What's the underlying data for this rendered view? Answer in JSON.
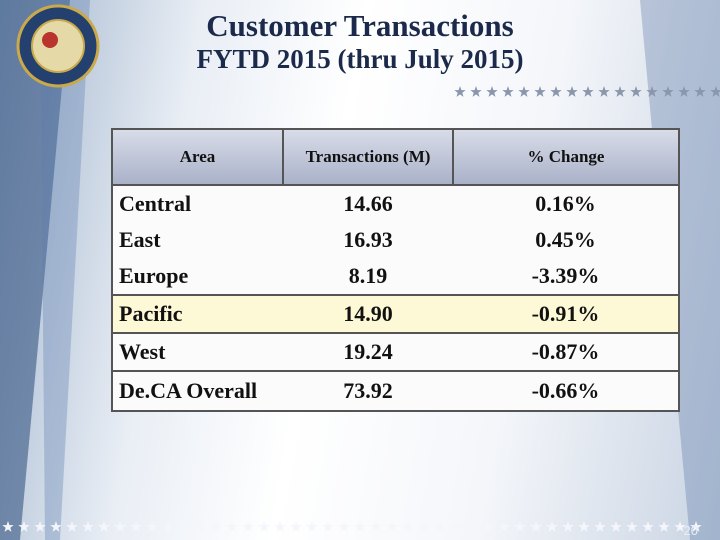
{
  "header": {
    "title": "Customer Transactions",
    "subtitle": "FYTD 2015 (thru July 2015)"
  },
  "table": {
    "columns": [
      "Area",
      "Transactions (M)",
      "% Change"
    ],
    "rows": [
      [
        "Central",
        "14.66",
        "0.16%"
      ],
      [
        "East",
        "16.93",
        "0.45%"
      ],
      [
        "Europe",
        "8.19",
        "-3.39%"
      ],
      [
        "Pacific",
        "14.90",
        "-0.91%"
      ],
      [
        "West",
        "19.24",
        "-0.87%"
      ],
      [
        "De.CA Overall",
        "73.92",
        "-0.66%"
      ]
    ]
  },
  "footer": {
    "page_number": "20"
  }
}
